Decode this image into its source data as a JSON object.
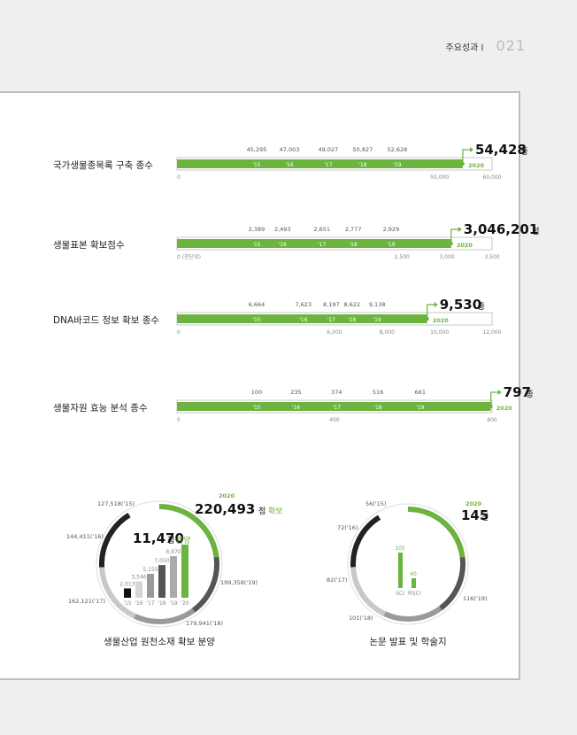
{
  "header": {
    "section": "주요성과 I",
    "page": "021"
  },
  "colors": {
    "green": "#6db33f",
    "border": "#c8c8c8",
    "dark": "#333333"
  },
  "bars": [
    {
      "label": "국가생물종목록 구축 종수",
      "max": 60000,
      "ticks": [
        "0",
        "50,000",
        "60,000"
      ],
      "tick_values": [
        0,
        50000,
        60000
      ],
      "values": [
        "45,295",
        "47,003",
        "49,027",
        "50,827",
        "52,628"
      ],
      "raw": [
        45295,
        47003,
        49027,
        50827,
        52628
      ],
      "years": [
        "'15",
        "'16",
        "'17",
        "'18",
        "'19"
      ],
      "final_value": "54,428",
      "final_raw": 54428,
      "final_unit": "종",
      "final_year": "2020"
    },
    {
      "label": "생물표본 확보점수",
      "max": 3500,
      "ticks": [
        "0 (천단위)",
        "2,500",
        "3,000",
        "3,500"
      ],
      "tick_values": [
        0,
        2500,
        3000,
        3500
      ],
      "values": [
        "2,389",
        "2,493",
        "2,651",
        "2,777",
        "2,929"
      ],
      "raw": [
        2389,
        2493,
        2651,
        2777,
        2929
      ],
      "years": [
        "'15",
        "'16",
        "'17",
        "'18",
        "'19"
      ],
      "final_value": "3,046,201",
      "final_raw": 3046,
      "final_unit": "점",
      "final_year": "2020"
    },
    {
      "label": "DNA바코드 정보 확보 종수",
      "max": 12000,
      "ticks": [
        "0",
        "6,000",
        "8,000",
        "10,000",
        "12,000"
      ],
      "tick_values": [
        0,
        6000,
        8000,
        10000,
        12000
      ],
      "values": [
        "6,664",
        "7,623",
        "8,197",
        "8,622",
        "9,138"
      ],
      "raw": [
        6664,
        7623,
        8197,
        8622,
        9138
      ],
      "years": [
        "'15",
        "'16",
        "'17",
        "'18",
        "'19"
      ],
      "final_value": "9,530",
      "final_raw": 9530,
      "final_unit": "종",
      "final_year": "2020"
    },
    {
      "label": "생물자원 효능 분석 종수",
      "max": 800,
      "ticks": [
        "0",
        "400",
        "800"
      ],
      "tick_values": [
        0,
        400,
        800
      ],
      "values": [
        "100",
        "235",
        "374",
        "516",
        "661"
      ],
      "raw": [
        100,
        235,
        374,
        516,
        661
      ],
      "years": [
        "'15",
        "'16",
        "'17",
        "'18",
        "'19"
      ],
      "final_value": "797",
      "final_raw": 797,
      "final_unit": "종",
      "final_year": "2020"
    }
  ],
  "donut1": {
    "title": "생물산업 원천소재 확보 분양",
    "ring_labels": [
      "127,518('15)",
      "144,411('16)",
      "162,121('17)",
      "179,941('18)",
      "199,358('19)"
    ],
    "final_year": "2020",
    "final_value": "220,493",
    "final_unit": "점",
    "final_tag": "확보",
    "inner_value": "11,470",
    "inner_unit": "점",
    "inner_tag": "분양",
    "inner_bar_values": [
      "2,013",
      "3,546",
      "5,155",
      "7,050",
      "8,970"
    ],
    "inner_bar_raw": [
      2013,
      3546,
      5155,
      7050,
      8970,
      11470
    ],
    "inner_years": [
      "'15",
      "'16",
      "'17",
      "'18",
      "'19",
      "'20"
    ]
  },
  "donut2": {
    "title": "논문 발표 및 학술지",
    "ring_labels": [
      "56('15)",
      "72('16)",
      "82('17)",
      "101('18)",
      "116('19)"
    ],
    "final_year": "2020",
    "final_value": "145",
    "final_unit": "건",
    "sci_value": "105",
    "sci_label": "SCI",
    "nonsci_value": "40",
    "nonsci_label": "비SCI"
  }
}
